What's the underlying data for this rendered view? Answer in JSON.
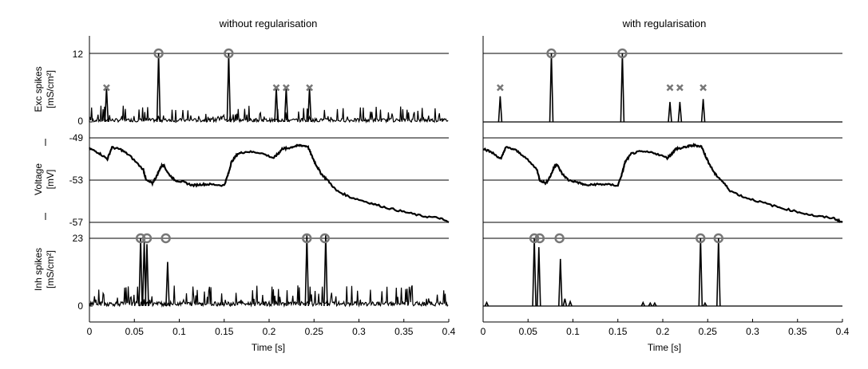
{
  "chart_data": [
    {
      "type": "line",
      "title": "without regularisation",
      "xlabel": "Time [s]",
      "xlim": [
        0,
        0.4
      ],
      "x_ticks": [
        "0",
        "0.05",
        "0.1",
        "0.15",
        "0.2",
        "0.25",
        "0.3",
        "0.35",
        "0.4"
      ],
      "rows": [
        {
          "name": "Exc spikes",
          "ylabel": [
            "Exc spikes",
            "[mS/cm²]"
          ],
          "ylim": [
            0,
            12
          ],
          "ticks": [
            "12",
            "0"
          ],
          "reference_line": 12,
          "spikes": [
            {
              "t": 0.077,
              "v": 12
            },
            {
              "t": 0.155,
              "v": 12
            },
            {
              "t": 0.019,
              "v": 6
            },
            {
              "t": 0.208,
              "v": 6
            },
            {
              "t": 0.219,
              "v": 6
            },
            {
              "t": 0.245,
              "v": 6
            }
          ],
          "markers": [
            {
              "t": 0.077,
              "y": 12,
              "shape": "circle"
            },
            {
              "t": 0.155,
              "y": 12,
              "shape": "circle"
            },
            {
              "t": 0.019,
              "y": 6,
              "shape": "cross"
            },
            {
              "t": 0.208,
              "y": 6,
              "shape": "cross"
            },
            {
              "t": 0.219,
              "y": 6,
              "shape": "cross"
            },
            {
              "t": 0.245,
              "y": 6,
              "shape": "cross"
            }
          ],
          "noise_level": 1.2
        },
        {
          "name": "Voltage",
          "ylabel": [
            "Voltage",
            "[mV]"
          ],
          "ylim": [
            -57,
            -49
          ],
          "ticks": [
            "-49",
            "-53",
            "-57"
          ],
          "gridlines": [
            -49,
            -53,
            -57
          ],
          "trace": {
            "t": [
              0.0,
              0.01,
              0.02,
              0.025,
              0.035,
              0.045,
              0.06,
              0.063,
              0.07,
              0.075,
              0.079,
              0.082,
              0.088,
              0.095,
              0.105,
              0.115,
              0.125,
              0.135,
              0.15,
              0.155,
              0.158,
              0.165,
              0.175,
              0.19,
              0.205,
              0.21,
              0.215,
              0.22,
              0.228,
              0.235,
              0.243,
              0.248,
              0.252,
              0.258,
              0.265,
              0.275,
              0.29,
              0.31,
              0.33,
              0.35,
              0.37,
              0.39,
              0.4
            ],
            "v": [
              -50.0,
              -50.4,
              -51.0,
              -49.9,
              -50.1,
              -50.7,
              -52.0,
              -53.0,
              -53.3,
              -52.6,
              -51.8,
              -51.5,
              -52.4,
              -53.0,
              -53.2,
              -53.5,
              -53.4,
              -53.4,
              -53.5,
              -52.3,
              -51.3,
              -50.5,
              -50.3,
              -50.4,
              -50.9,
              -50.5,
              -50.0,
              -50.0,
              -49.8,
              -49.7,
              -49.8,
              -50.8,
              -51.5,
              -52.4,
              -53.0,
              -54.0,
              -54.6,
              -55.1,
              -55.6,
              -56.0,
              -56.4,
              -56.6,
              -57.0
            ]
          }
        },
        {
          "name": "Inh spikes",
          "ylabel": [
            "Inh spikes",
            "[mS/cm²]"
          ],
          "ylim": [
            0,
            23
          ],
          "ticks": [
            "23",
            "0"
          ],
          "reference_line": 23,
          "spikes": [
            {
              "t": 0.057,
              "v": 23
            },
            {
              "t": 0.061,
              "v": 22
            },
            {
              "t": 0.064,
              "v": 21
            },
            {
              "t": 0.087,
              "v": 15
            },
            {
              "t": 0.242,
              "v": 24
            },
            {
              "t": 0.263,
              "v": 24
            }
          ],
          "markers": [
            {
              "t": 0.057,
              "y": 23,
              "shape": "circle"
            },
            {
              "t": 0.064,
              "y": 23,
              "shape": "circle"
            },
            {
              "t": 0.085,
              "y": 23,
              "shape": "circle"
            },
            {
              "t": 0.242,
              "y": 23,
              "shape": "circle"
            },
            {
              "t": 0.262,
              "y": 23,
              "shape": "circle"
            }
          ],
          "noise_level": 3.0
        }
      ]
    },
    {
      "type": "line",
      "title": "with regularisation",
      "xlabel": "Time [s]",
      "xlim": [
        0,
        0.4
      ],
      "x_ticks": [
        "0",
        "0.05",
        "0.1",
        "0.15",
        "0.2",
        "0.25",
        "0.3",
        "0.35",
        "0.4"
      ],
      "rows": [
        {
          "name": "Exc spikes",
          "ylim": [
            0,
            12
          ],
          "reference_line": 12,
          "spikes": [
            {
              "t": 0.076,
              "v": 12
            },
            {
              "t": 0.155,
              "v": 12
            },
            {
              "t": 0.019,
              "v": 4.5
            },
            {
              "t": 0.208,
              "v": 3.5
            },
            {
              "t": 0.219,
              "v": 3.5
            },
            {
              "t": 0.245,
              "v": 4
            }
          ],
          "markers": [
            {
              "t": 0.076,
              "y": 12,
              "shape": "circle"
            },
            {
              "t": 0.155,
              "y": 12,
              "shape": "circle"
            },
            {
              "t": 0.019,
              "y": 6,
              "shape": "cross"
            },
            {
              "t": 0.208,
              "y": 6,
              "shape": "cross"
            },
            {
              "t": 0.219,
              "y": 6,
              "shape": "cross"
            },
            {
              "t": 0.245,
              "y": 6,
              "shape": "cross"
            }
          ],
          "noise_level": 0.0
        },
        {
          "name": "Voltage",
          "ylim": [
            -57,
            -49
          ],
          "gridlines": [
            -49,
            -53,
            -57
          ],
          "trace": {
            "t": [
              0.0,
              0.01,
              0.02,
              0.025,
              0.035,
              0.045,
              0.06,
              0.063,
              0.07,
              0.075,
              0.079,
              0.082,
              0.088,
              0.095,
              0.105,
              0.115,
              0.125,
              0.135,
              0.15,
              0.155,
              0.158,
              0.165,
              0.175,
              0.19,
              0.205,
              0.21,
              0.215,
              0.22,
              0.228,
              0.235,
              0.243,
              0.248,
              0.252,
              0.258,
              0.265,
              0.275,
              0.29,
              0.31,
              0.33,
              0.35,
              0.37,
              0.39,
              0.4
            ],
            "v": [
              -50.0,
              -50.4,
              -51.0,
              -49.9,
              -50.1,
              -50.7,
              -52.0,
              -53.0,
              -53.3,
              -52.6,
              -51.8,
              -51.5,
              -52.4,
              -53.0,
              -53.2,
              -53.5,
              -53.4,
              -53.4,
              -53.5,
              -52.3,
              -51.3,
              -50.5,
              -50.3,
              -50.4,
              -50.9,
              -50.5,
              -50.0,
              -50.0,
              -49.8,
              -49.7,
              -49.8,
              -50.8,
              -51.5,
              -52.4,
              -53.0,
              -54.0,
              -54.6,
              -55.1,
              -55.6,
              -56.0,
              -56.4,
              -56.6,
              -57.0
            ]
          }
        },
        {
          "name": "Inh spikes",
          "ylim": [
            0,
            23
          ],
          "reference_line": 23,
          "spikes": [
            {
              "t": 0.057,
              "v": 23
            },
            {
              "t": 0.062,
              "v": 20
            },
            {
              "t": 0.086,
              "v": 16
            },
            {
              "t": 0.004,
              "v": 1.2
            },
            {
              "t": 0.091,
              "v": 2.5
            },
            {
              "t": 0.097,
              "v": 1.5
            },
            {
              "t": 0.178,
              "v": 1.2
            },
            {
              "t": 0.186,
              "v": 1
            },
            {
              "t": 0.191,
              "v": 1
            },
            {
              "t": 0.242,
              "v": 23
            },
            {
              "t": 0.247,
              "v": 1
            },
            {
              "t": 0.262,
              "v": 23
            }
          ],
          "markers": [
            {
              "t": 0.057,
              "y": 23,
              "shape": "circle"
            },
            {
              "t": 0.063,
              "y": 23,
              "shape": "circle"
            },
            {
              "t": 0.085,
              "y": 23,
              "shape": "circle"
            },
            {
              "t": 0.242,
              "y": 23,
              "shape": "circle"
            },
            {
              "t": 0.262,
              "y": 23,
              "shape": "circle"
            }
          ],
          "noise_level": 0.0
        }
      ]
    }
  ]
}
